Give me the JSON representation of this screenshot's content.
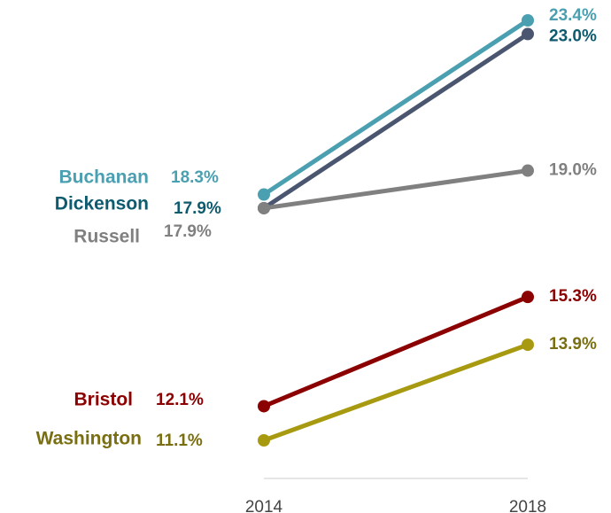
{
  "chart_data": {
    "type": "slope",
    "categories": [
      "2014",
      "2018"
    ],
    "series": [
      {
        "name": "Buchanan",
        "color": "#4a9fb0",
        "label_color": "#4a9fb0",
        "values": [
          18.3,
          23.4
        ],
        "value_labels": [
          "18.3%",
          "23.4%"
        ]
      },
      {
        "name": "Dickenson",
        "color": "#4a5670",
        "label_color": "#0e5a6e",
        "values": [
          17.9,
          23.0
        ],
        "value_labels": [
          "17.9%",
          "23.0%"
        ]
      },
      {
        "name": "Russell",
        "color": "#808080",
        "label_color": "#808080",
        "values": [
          17.9,
          19.0
        ],
        "value_labels": [
          "17.9%",
          "19.0%"
        ]
      },
      {
        "name": "Bristol",
        "color": "#8b0000",
        "label_color": "#8b0000",
        "values": [
          12.1,
          15.3
        ],
        "value_labels": [
          "12.1%",
          "15.3%"
        ]
      },
      {
        "name": "Washington",
        "color": "#a89a10",
        "label_color": "#7a6f10",
        "values": [
          11.1,
          13.9
        ],
        "value_labels": [
          "11.1%",
          "13.9%"
        ]
      }
    ]
  }
}
